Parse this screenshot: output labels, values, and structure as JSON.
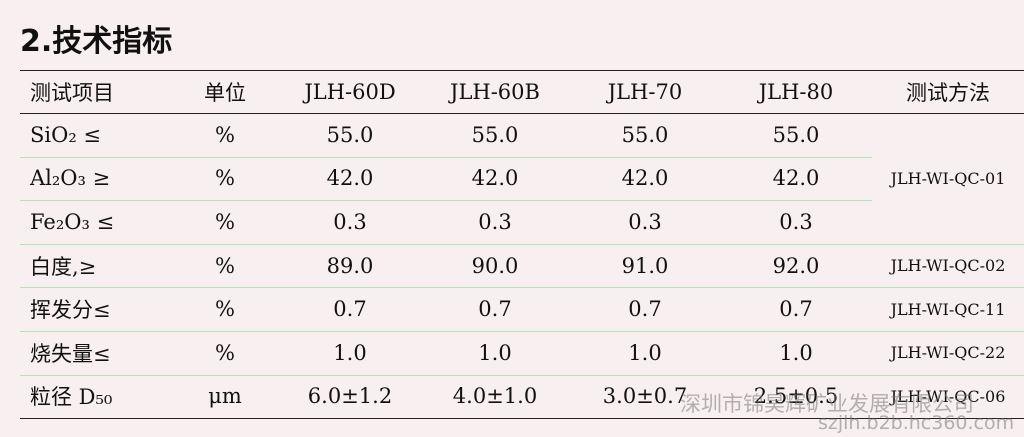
{
  "title": "2.技术指标",
  "table": {
    "header": [
      "测试项目",
      "单位",
      "JLH-60D",
      "JLH-60B",
      "JLH-70",
      "JLH-80",
      "测试方法"
    ],
    "rows": [
      [
        "SiO₂ ≤",
        "%",
        "55.0",
        "55.0",
        "55.0",
        "55.0",
        "JLH-WI-QC-01"
      ],
      [
        "Al₂O₃ ≥",
        "%",
        "42.0",
        "42.0",
        "42.0",
        "42.0"
      ],
      [
        "Fe₂O₃ ≤",
        "%",
        "0.3",
        "0.3",
        "0.3",
        "0.3"
      ],
      [
        "白度,≥",
        "%",
        "89.0",
        "90.0",
        "91.0",
        "92.0",
        "JLH-WI-QC-02"
      ],
      [
        "挥发分≤",
        "%",
        "0.7",
        "0.7",
        "0.7",
        "0.7",
        "JLH-WI-QC-11"
      ],
      [
        "烧失量≤",
        "%",
        "1.0",
        "1.0",
        "1.0",
        "1.0",
        "JLH-WI-QC-22"
      ],
      [
        "粒径 D₅₀",
        "μm",
        "6.0±1.2",
        "4.0±1.0",
        "3.0±0.7",
        "2.5±0.5",
        "JLH-WI-QC-06"
      ]
    ]
  },
  "watermark": {
    "company": "深圳市锦昊辉矿业发展有限公司",
    "url": "szjlh.b2b.hc360.com"
  }
}
